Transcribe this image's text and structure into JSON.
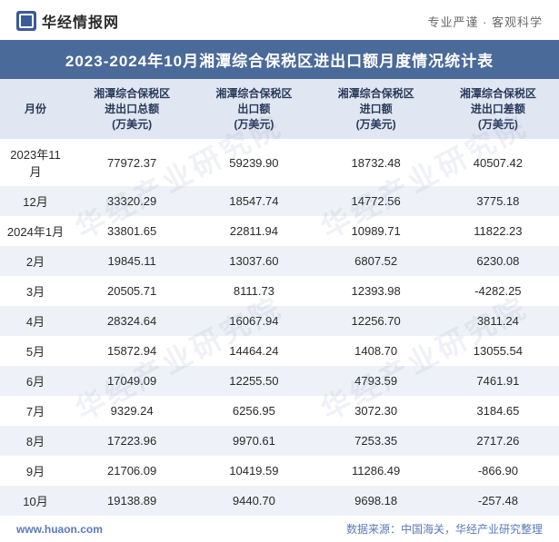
{
  "header": {
    "logo_text": "华经情报网",
    "slogan": "专业严谨 · 客观科学"
  },
  "title": "2023-2024年10月湘潭综合保税区进出口额月度情况统计表",
  "table": {
    "columns": [
      "月份",
      "湘潭综合保税区\n进出口总额\n(万美元)",
      "湘潭综合保税区\n出口额\n(万美元)",
      "湘潭综合保税区\n进口额\n(万美元)",
      "湘潭综合保税区\n进出口差额\n(万美元)"
    ],
    "rows": [
      [
        "2023年11月",
        "77972.37",
        "59239.90",
        "18732.48",
        "40507.42"
      ],
      [
        "12月",
        "33320.29",
        "18547.74",
        "14772.56",
        "3775.18"
      ],
      [
        "2024年1月",
        "33801.65",
        "22811.94",
        "10989.71",
        "11822.23"
      ],
      [
        "2月",
        "19845.11",
        "13037.60",
        "6807.52",
        "6230.08"
      ],
      [
        "3月",
        "20505.71",
        "8111.73",
        "12393.98",
        "-4282.25"
      ],
      [
        "4月",
        "28324.64",
        "16067.94",
        "12256.70",
        "3811.24"
      ],
      [
        "5月",
        "15872.94",
        "14464.24",
        "1408.70",
        "13055.54"
      ],
      [
        "6月",
        "17049.09",
        "12255.50",
        "4793.59",
        "7461.91"
      ],
      [
        "7月",
        "9329.24",
        "6256.95",
        "3072.30",
        "3184.65"
      ],
      [
        "8月",
        "17223.96",
        "9970.61",
        "7253.35",
        "2717.26"
      ],
      [
        "9月",
        "21706.09",
        "10419.59",
        "11286.49",
        "-866.90"
      ],
      [
        "10月",
        "19138.89",
        "9440.70",
        "9698.18",
        "-257.48"
      ]
    ]
  },
  "footer": {
    "url": "www.huaon.com",
    "source": "数据来源：中国海关，华经产业研究整理"
  },
  "watermark": "华经产业研究院",
  "style": {
    "title_bg": "#4a6a9a",
    "title_fg": "#ffffff",
    "header_row_bg": "#e1e7f2",
    "header_row_fg": "#2a3a5a",
    "row_odd_bg": "#ffffff",
    "row_even_bg": "#eef2f8",
    "cell_fg": "#2a2a2a",
    "footer_fg": "#5a7aba",
    "logo_bg": "#3a5a9a",
    "watermark_color": "rgba(120,140,180,0.12)",
    "title_fontsize": 17,
    "header_fontsize": 12,
    "cell_fontsize": 13,
    "footer_fontsize": 12
  }
}
